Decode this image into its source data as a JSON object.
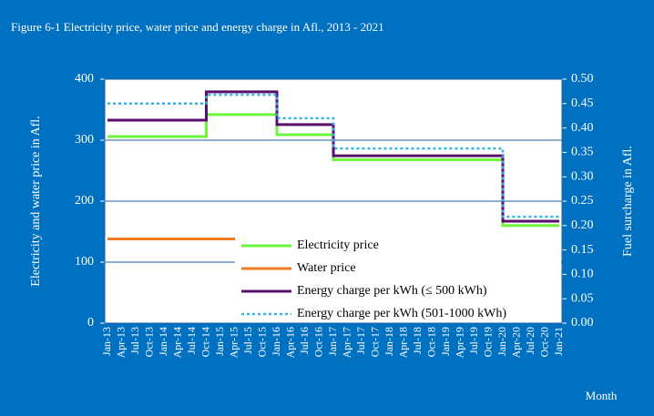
{
  "chart_data": {
    "type": "line",
    "title": "Figure 6-1 Electricity price, water price and energy charge in Afl., 2013 - 2021",
    "ylabel": "Electricity and water price in Afl.",
    "y2label": "Fuel surcharge in Afl.",
    "xlabel": "Month",
    "step": "pre",
    "grid": true,
    "categories": [
      "Jan-13",
      "Apr-13",
      "Jul-13",
      "Oct-13",
      "Jan-14",
      "Apr-14",
      "Jul-14",
      "Oct-14",
      "Jan-15",
      "Apr-15",
      "Jul-15",
      "Oct-15",
      "Jan-16",
      "Apr-16",
      "Jul-16",
      "Oct-16",
      "Jan-17",
      "Apr-17",
      "Jul-17",
      "Oct-17",
      "Jan-18",
      "Apr-18",
      "Jul-18",
      "Oct-18",
      "Jan-19",
      "Apr-19",
      "Jul-19",
      "Oct-19",
      "Jan-20",
      "Apr-20",
      "Jul-20",
      "Oct-20",
      "Jan-21"
    ],
    "ylim": [
      0,
      400
    ],
    "yticks": [
      0,
      100,
      200,
      300,
      400
    ],
    "y2lim": [
      0,
      0.5
    ],
    "y2ticks": [
      {
        "value": 0,
        "label": "0.00"
      },
      0.05,
      {
        "value": 0.1,
        "label": "0.10"
      },
      0.15,
      {
        "value": 0.2,
        "label": "0.20"
      },
      0.25,
      {
        "value": 0.3,
        "label": "0.30"
      },
      0.35,
      {
        "value": 0.4,
        "label": "0.40"
      },
      0.45,
      {
        "value": 0.5,
        "label": "0.50"
      }
    ],
    "series": [
      {
        "name": "Electricity price",
        "color": "#6cf53a",
        "dash": "solid",
        "values": [
          306,
          306,
          306,
          306,
          306,
          306,
          306,
          342,
          342,
          342,
          342,
          342,
          309,
          309,
          309,
          309,
          268,
          268,
          268,
          268,
          268,
          268,
          268,
          268,
          268,
          268,
          268,
          268,
          160,
          160,
          160,
          160,
          160
        ]
      },
      {
        "name": "Water price",
        "color": "#f07a22",
        "dash": "solid",
        "values": [
          138,
          138,
          138,
          138,
          138,
          138,
          138,
          138,
          138,
          138,
          138,
          138,
          138,
          138,
          138,
          138,
          138,
          138,
          138,
          138,
          138,
          138,
          138,
          138,
          138,
          138,
          138,
          138,
          138,
          138,
          138,
          138,
          138
        ]
      },
      {
        "name": "Energy charge per kWh (≤ 500 kWh)",
        "color": "#5a0e6c",
        "dash": "solid",
        "axis": "y2",
        "values": [
          0.416,
          0.416,
          0.416,
          0.416,
          0.416,
          0.416,
          0.416,
          0.474,
          0.474,
          0.474,
          0.474,
          0.474,
          0.407,
          0.407,
          0.407,
          0.407,
          0.343,
          0.343,
          0.343,
          0.343,
          0.343,
          0.343,
          0.343,
          0.343,
          0.343,
          0.343,
          0.343,
          0.343,
          0.209,
          0.209,
          0.209,
          0.209,
          0.209
        ]
      },
      {
        "name": "Energy charge per kWh (501-1000 kWh)",
        "color": "#36b4e6",
        "dash": "dotted",
        "axis": "y2",
        "values": [
          0.45,
          0.45,
          0.45,
          0.45,
          0.45,
          0.45,
          0.45,
          0.468,
          0.468,
          0.468,
          0.468,
          0.468,
          0.42,
          0.42,
          0.42,
          0.42,
          0.358,
          0.358,
          0.358,
          0.358,
          0.358,
          0.358,
          0.358,
          0.358,
          0.358,
          0.358,
          0.358,
          0.358,
          0.218,
          0.218,
          0.218,
          0.218,
          0.218
        ]
      }
    ]
  }
}
